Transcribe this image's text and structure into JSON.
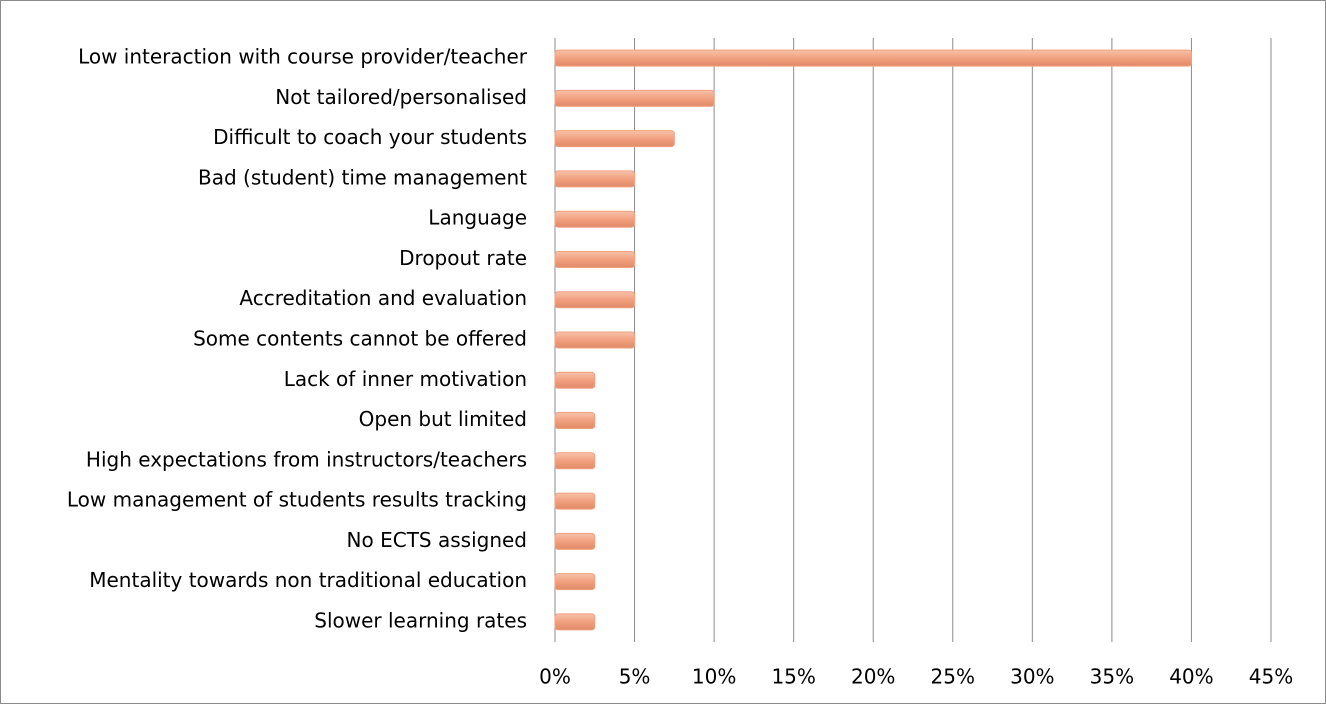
{
  "chart_data": {
    "type": "barh",
    "categories": [
      "Low interaction with course provider/teacher",
      "Not tailored/personalised",
      "Difficult to coach your students",
      "Bad (student) time management",
      "Language",
      "Dropout rate",
      "Accreditation and evaluation",
      "Some contents cannot be offered",
      "Lack of inner motivation",
      "Open but limited",
      "High expectations from instructors/teachers",
      "Low management of students results tracking",
      "No ECTS assigned",
      "Mentality towards non traditional education",
      "Slower learning rates"
    ],
    "values": [
      40,
      10,
      7.5,
      5,
      5,
      5,
      5,
      5,
      2.5,
      2.5,
      2.5,
      2.5,
      2.5,
      2.5,
      2.5
    ],
    "color": "#f2a07f",
    "xlim": [
      0,
      45
    ],
    "xticks": [
      {
        "value": 0,
        "label": "0%"
      },
      {
        "value": 5,
        "label": "5%"
      },
      {
        "value": 10,
        "label": "10%"
      },
      {
        "value": 15,
        "label": "15%"
      },
      {
        "value": 20,
        "label": "20%"
      },
      {
        "value": 25,
        "label": "25%"
      },
      {
        "value": 30,
        "label": "30%"
      },
      {
        "value": 35,
        "label": "35%"
      },
      {
        "value": 40,
        "label": "40%"
      },
      {
        "value": 45,
        "label": "45%"
      }
    ],
    "grid": true
  }
}
